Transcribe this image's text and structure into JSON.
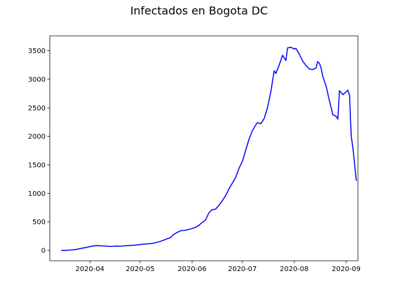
{
  "chart_data": {
    "type": "line",
    "title": "Infectados en Bogota DC",
    "xlabel": "",
    "ylabel": "",
    "grid": false,
    "xlim": [
      "2020-03-08",
      "2020-09-08"
    ],
    "ylim": [
      -180,
      3760
    ],
    "x_ticks": [
      {
        "label": "2020-04",
        "value": "2020-04-01"
      },
      {
        "label": "2020-05",
        "value": "2020-05-01"
      },
      {
        "label": "2020-06",
        "value": "2020-06-01"
      },
      {
        "label": "2020-07",
        "value": "2020-07-01"
      },
      {
        "label": "2020-08",
        "value": "2020-08-01"
      },
      {
        "label": "2020-09",
        "value": "2020-09-01"
      }
    ],
    "y_ticks": [
      0,
      500,
      1000,
      1500,
      2000,
      2500,
      3000,
      3500
    ],
    "series": [
      {
        "color": "#0000ff",
        "points": [
          [
            "2020-03-15",
            0
          ],
          [
            "2020-03-19",
            5
          ],
          [
            "2020-03-23",
            15
          ],
          [
            "2020-03-27",
            38
          ],
          [
            "2020-03-31",
            62
          ],
          [
            "2020-04-03",
            80
          ],
          [
            "2020-04-05",
            85
          ],
          [
            "2020-04-09",
            80
          ],
          [
            "2020-04-13",
            70
          ],
          [
            "2020-04-15",
            73
          ],
          [
            "2020-04-17",
            78
          ],
          [
            "2020-04-19",
            76
          ],
          [
            "2020-04-23",
            85
          ],
          [
            "2020-04-27",
            92
          ],
          [
            "2020-04-30",
            100
          ],
          [
            "2020-05-03",
            112
          ],
          [
            "2020-05-06",
            118
          ],
          [
            "2020-05-09",
            128
          ],
          [
            "2020-05-12",
            150
          ],
          [
            "2020-05-15",
            180
          ],
          [
            "2020-05-17",
            205
          ],
          [
            "2020-05-19",
            225
          ],
          [
            "2020-05-21",
            280
          ],
          [
            "2020-05-23",
            315
          ],
          [
            "2020-05-25",
            345
          ],
          [
            "2020-05-28",
            355
          ],
          [
            "2020-05-31",
            375
          ],
          [
            "2020-06-03",
            405
          ],
          [
            "2020-06-05",
            440
          ],
          [
            "2020-06-07",
            490
          ],
          [
            "2020-06-09",
            530
          ],
          [
            "2020-06-11",
            660
          ],
          [
            "2020-06-13",
            715
          ],
          [
            "2020-06-15",
            725
          ],
          [
            "2020-06-17",
            790
          ],
          [
            "2020-06-19",
            870
          ],
          [
            "2020-06-21",
            960
          ],
          [
            "2020-06-23",
            1080
          ],
          [
            "2020-06-25",
            1180
          ],
          [
            "2020-06-27",
            1280
          ],
          [
            "2020-06-29",
            1440
          ],
          [
            "2020-07-01",
            1560
          ],
          [
            "2020-07-03",
            1760
          ],
          [
            "2020-07-05",
            1950
          ],
          [
            "2020-07-07",
            2100
          ],
          [
            "2020-07-09",
            2200
          ],
          [
            "2020-07-10",
            2240
          ],
          [
            "2020-07-12",
            2220
          ],
          [
            "2020-07-14",
            2310
          ],
          [
            "2020-07-16",
            2500
          ],
          [
            "2020-07-18",
            2780
          ],
          [
            "2020-07-20",
            3150
          ],
          [
            "2020-07-21",
            3100
          ],
          [
            "2020-07-23",
            3250
          ],
          [
            "2020-07-25",
            3420
          ],
          [
            "2020-07-27",
            3330
          ],
          [
            "2020-07-28",
            3550
          ],
          [
            "2020-07-30",
            3560
          ],
          [
            "2020-08-01",
            3530
          ],
          [
            "2020-08-02",
            3540
          ],
          [
            "2020-08-04",
            3440
          ],
          [
            "2020-08-06",
            3320
          ],
          [
            "2020-08-08",
            3240
          ],
          [
            "2020-08-10",
            3180
          ],
          [
            "2020-08-12",
            3170
          ],
          [
            "2020-08-14",
            3200
          ],
          [
            "2020-08-15",
            3310
          ],
          [
            "2020-08-16",
            3280
          ],
          [
            "2020-08-17",
            3200
          ],
          [
            "2020-08-18",
            3050
          ],
          [
            "2020-08-20",
            2880
          ],
          [
            "2020-08-22",
            2620
          ],
          [
            "2020-08-24",
            2380
          ],
          [
            "2020-08-26",
            2350
          ],
          [
            "2020-08-27",
            2300
          ],
          [
            "2020-08-28",
            2800
          ],
          [
            "2020-08-30",
            2730
          ],
          [
            "2020-09-01",
            2780
          ],
          [
            "2020-09-02",
            2810
          ],
          [
            "2020-09-03",
            2720
          ],
          [
            "2020-09-04",
            2000
          ],
          [
            "2020-09-05",
            1800
          ],
          [
            "2020-09-07",
            1230
          ]
        ]
      }
    ]
  }
}
